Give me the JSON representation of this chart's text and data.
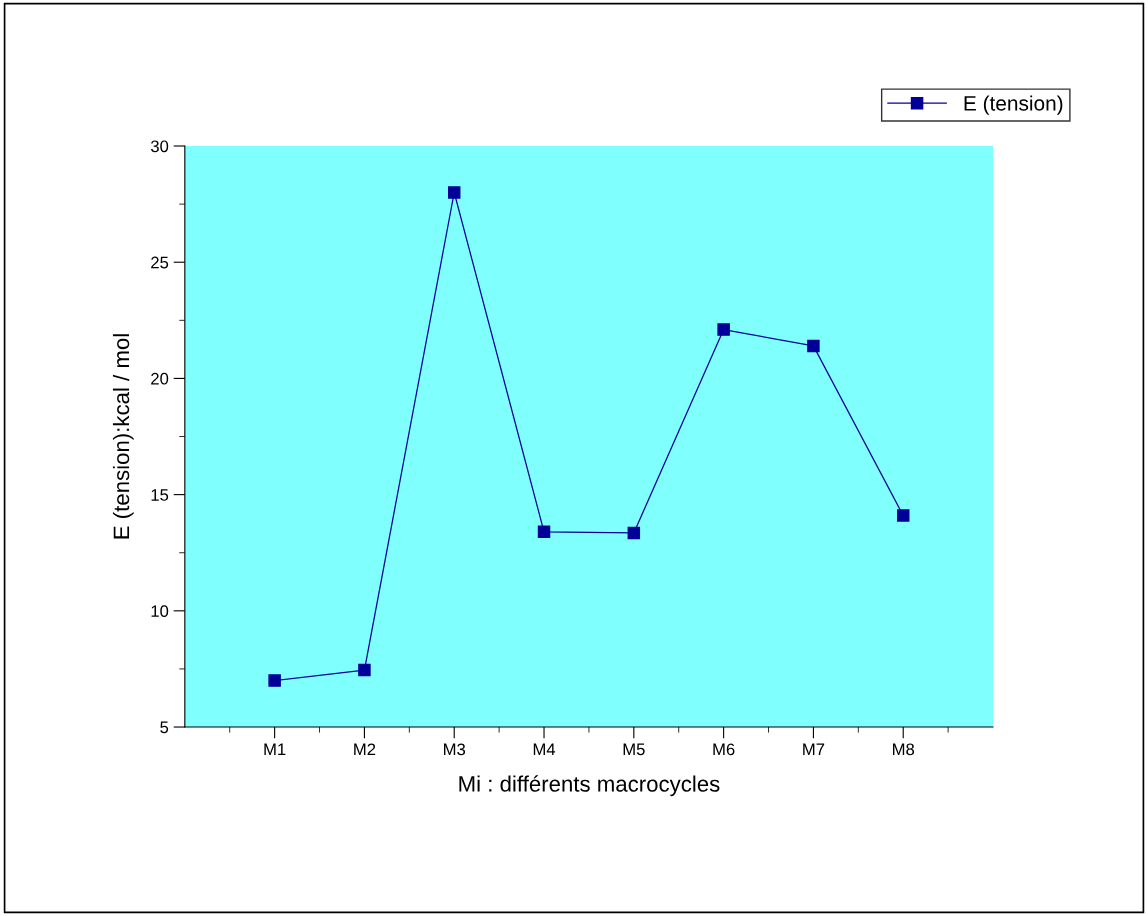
{
  "chart_data": {
    "type": "line",
    "xlabel": "Mi : différents macrocycles",
    "ylabel": "E (tension):kcal / mol",
    "categories": [
      "M1",
      "M2",
      "M3",
      "M4",
      "M5",
      "M6",
      "M7",
      "M8"
    ],
    "series": [
      {
        "name": "E (tension)",
        "color": "#000099",
        "values": [
          7.0,
          7.45,
          28.0,
          13.4,
          13.35,
          22.1,
          21.4,
          14.1
        ]
      }
    ],
    "ylim": [
      5,
      30
    ],
    "yticks": [
      5,
      10,
      15,
      20,
      25,
      30
    ],
    "grid": false,
    "legend": "top right",
    "marker": "square",
    "line_style": "solid"
  }
}
